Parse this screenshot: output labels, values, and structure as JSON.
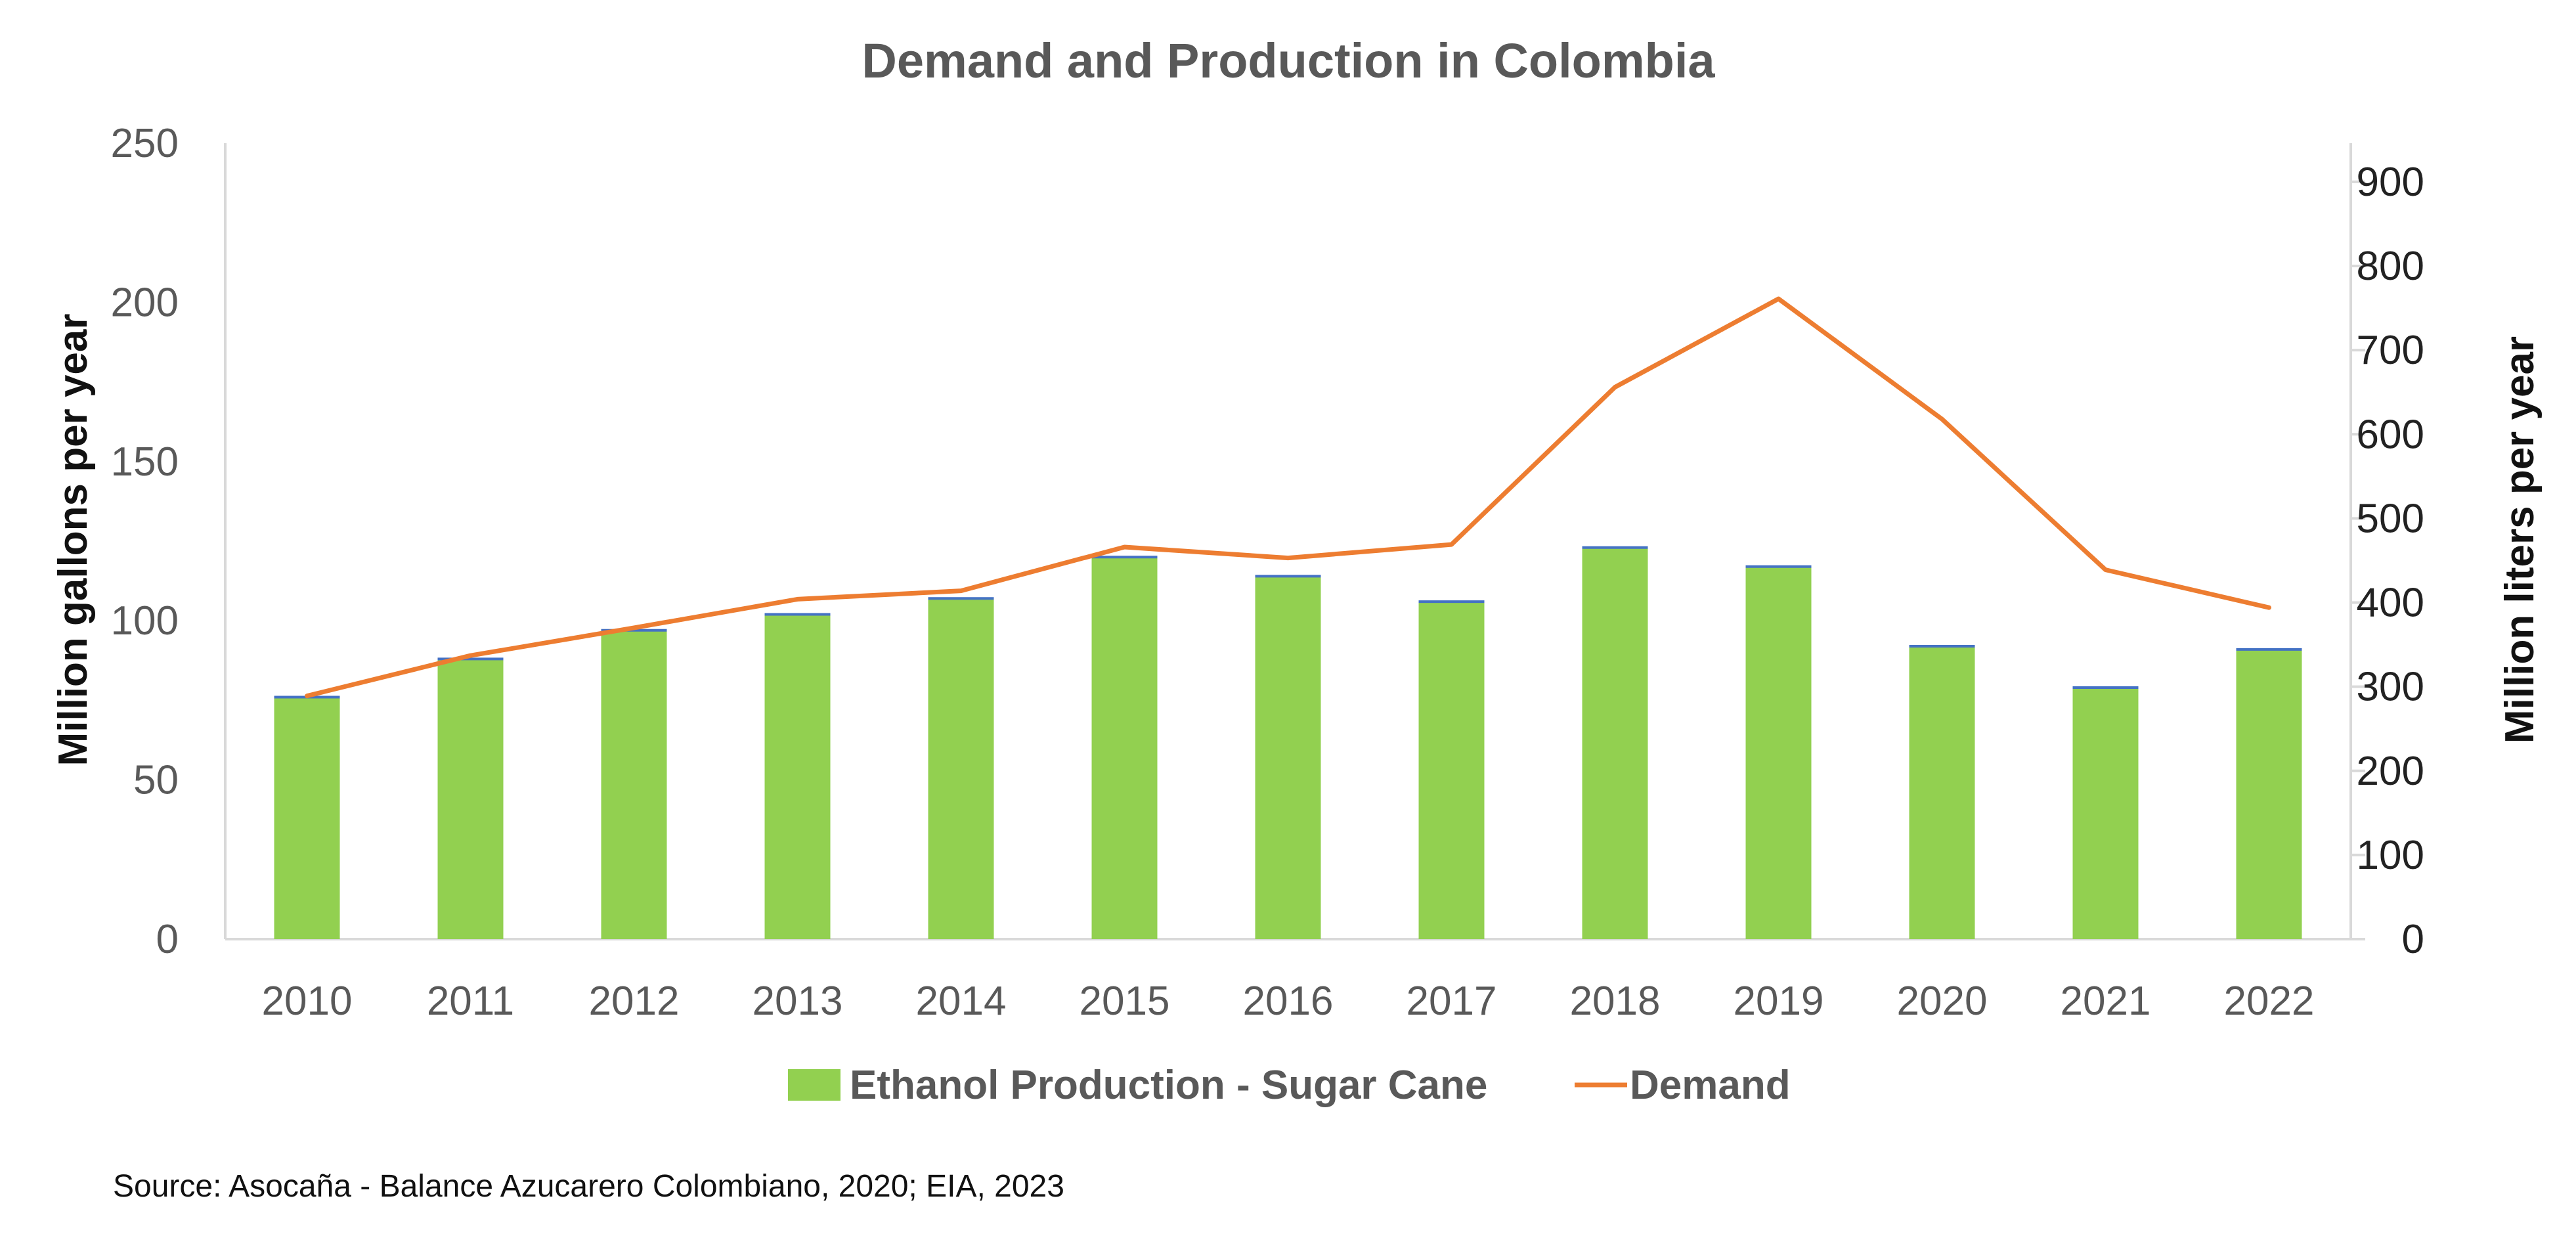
{
  "chart_data": {
    "type": "bar",
    "title": "Demand and Production in Colombia",
    "categories": [
      "2010",
      "2011",
      "2012",
      "2013",
      "2014",
      "2015",
      "2016",
      "2017",
      "2018",
      "2019",
      "2020",
      "2021",
      "2022"
    ],
    "series": [
      {
        "name": "Ethanol Production - Sugar Cane",
        "type": "bar",
        "axis": "left",
        "color": "#92D050",
        "values": [
          76,
          88,
          97,
          102,
          107,
          120,
          114,
          106,
          123,
          117,
          92,
          79,
          91
        ]
      },
      {
        "name": "Demand",
        "type": "line",
        "axis": "right",
        "color": "#ED7D31",
        "values": [
          289,
          337,
          370,
          404,
          414,
          466,
          453,
          469,
          656,
          761,
          618,
          439,
          394
        ]
      }
    ],
    "left_axis": {
      "label": "Million gallons per year",
      "ylim": [
        0,
        250
      ],
      "ticks": [
        "0",
        "50",
        "100",
        "150",
        "200",
        "250"
      ]
    },
    "right_axis": {
      "label": "Million liters per year",
      "ylim": [
        0,
        946
      ],
      "ticks": [
        "0",
        "100",
        "200",
        "300",
        "400",
        "500",
        "600",
        "700",
        "800",
        "900"
      ]
    },
    "grid": false,
    "legend_position": "bottom",
    "source": "Source: Asocaña - Balance Azucarero Colombiano, 2020; EIA, 2023",
    "bar_cap_color": "#4472C4",
    "axis_line_color": "#D9D9D9"
  }
}
